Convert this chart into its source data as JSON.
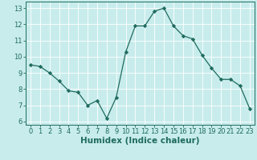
{
  "x": [
    0,
    1,
    2,
    3,
    4,
    5,
    6,
    7,
    8,
    9,
    10,
    11,
    12,
    13,
    14,
    15,
    16,
    17,
    18,
    19,
    20,
    21,
    22,
    23
  ],
  "y": [
    9.5,
    9.4,
    9.0,
    8.5,
    7.9,
    7.8,
    7.0,
    7.3,
    6.2,
    7.5,
    10.3,
    11.9,
    11.9,
    12.8,
    13.0,
    11.9,
    11.3,
    11.1,
    10.1,
    9.3,
    8.6,
    8.6,
    8.2,
    6.8
  ],
  "line_color": "#1f6b5e",
  "marker": "D",
  "marker_size": 2.2,
  "bg_color": "#c8ecec",
  "grid_color": "#ffffff",
  "xlabel": "Humidex (Indice chaleur)",
  "xlabel_fontsize": 7.5,
  "tick_fontsize": 6.0,
  "ylim": [
    5.8,
    13.4
  ],
  "xlim": [
    -0.5,
    23.5
  ],
  "yticks": [
    6,
    7,
    8,
    9,
    10,
    11,
    12,
    13
  ],
  "xticks": [
    0,
    1,
    2,
    3,
    4,
    5,
    6,
    7,
    8,
    9,
    10,
    11,
    12,
    13,
    14,
    15,
    16,
    17,
    18,
    19,
    20,
    21,
    22,
    23
  ]
}
